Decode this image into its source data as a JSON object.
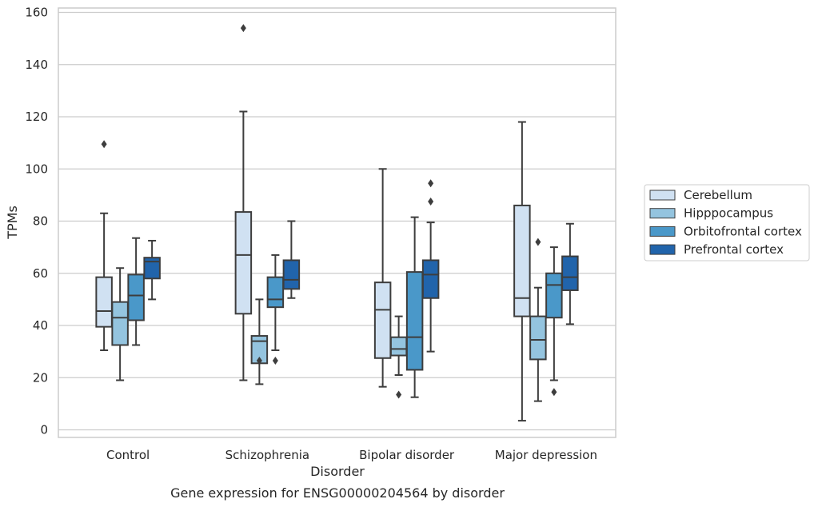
{
  "chart_data": {
    "type": "boxplot",
    "title": "",
    "caption": "Gene expression for ENSG00000204564 by disorder",
    "xlabel": "Disorder",
    "ylabel": "TPMs",
    "ylim": [
      -3,
      161
    ],
    "yticks": [
      0,
      20,
      40,
      60,
      80,
      100,
      120,
      140,
      160
    ],
    "grid": "horizontal",
    "legend_position": "right",
    "categories": [
      "Control",
      "Schizophrenia",
      "Bipolar disorder",
      "Major depression"
    ],
    "series": [
      {
        "name": "Cerebellum",
        "color": "#d0e1f2",
        "boxes": [
          {
            "min": 30.5,
            "q1": 39.5,
            "median": 45.5,
            "q3": 58.5,
            "max": 83,
            "outliers": [
              109.5
            ]
          },
          {
            "min": 19,
            "q1": 44.5,
            "median": 67,
            "q3": 83.5,
            "max": 122,
            "outliers": [
              154
            ]
          },
          {
            "min": 16.5,
            "q1": 27.5,
            "median": 46,
            "q3": 56.5,
            "max": 100,
            "outliers": []
          },
          {
            "min": 3.5,
            "q1": 43.5,
            "median": 50.5,
            "q3": 86,
            "max": 118,
            "outliers": []
          }
        ]
      },
      {
        "name": "Hipppocampus",
        "color": "#94c4df",
        "boxes": [
          {
            "min": 19,
            "q1": 32.5,
            "median": 43,
            "q3": 49,
            "max": 62,
            "outliers": []
          },
          {
            "min": 17.5,
            "q1": 25.5,
            "median": 34,
            "q3": 36,
            "max": 50,
            "outliers": [
              26.5
            ]
          },
          {
            "min": 21,
            "q1": 28.5,
            "median": 31,
            "q3": 35.5,
            "max": 43.5,
            "outliers": [
              13.5
            ]
          },
          {
            "min": 11,
            "q1": 27,
            "median": 34.5,
            "q3": 43.5,
            "max": 54.5,
            "outliers": [
              72
            ]
          }
        ]
      },
      {
        "name": "Orbitofrontal cortex",
        "color": "#4a98c9",
        "boxes": [
          {
            "min": 32.5,
            "q1": 42,
            "median": 51.5,
            "q3": 59.5,
            "max": 73.5,
            "outliers": []
          },
          {
            "min": 30.5,
            "q1": 47,
            "median": 50,
            "q3": 58.5,
            "max": 67,
            "outliers": [
              26.5
            ]
          },
          {
            "min": 12.5,
            "q1": 23,
            "median": 35.5,
            "q3": 60.5,
            "max": 81.5,
            "outliers": []
          },
          {
            "min": 19,
            "q1": 43,
            "median": 55.5,
            "q3": 60,
            "max": 70,
            "outliers": [
              14.5
            ]
          }
        ]
      },
      {
        "name": "Prefrontal cortex",
        "color": "#2164ab",
        "boxes": [
          {
            "min": 50,
            "q1": 58,
            "median": 64.5,
            "q3": 66,
            "max": 72.5,
            "outliers": []
          },
          {
            "min": 50.5,
            "q1": 54,
            "median": 57.5,
            "q3": 65,
            "max": 80,
            "outliers": []
          },
          {
            "min": 30,
            "q1": 50.5,
            "median": 59.5,
            "q3": 65,
            "max": 79.5,
            "outliers": [
              87.5,
              94.5
            ]
          },
          {
            "min": 40.5,
            "q1": 53.5,
            "median": 58.5,
            "q3": 66.5,
            "max": 79,
            "outliers": []
          }
        ]
      }
    ]
  }
}
